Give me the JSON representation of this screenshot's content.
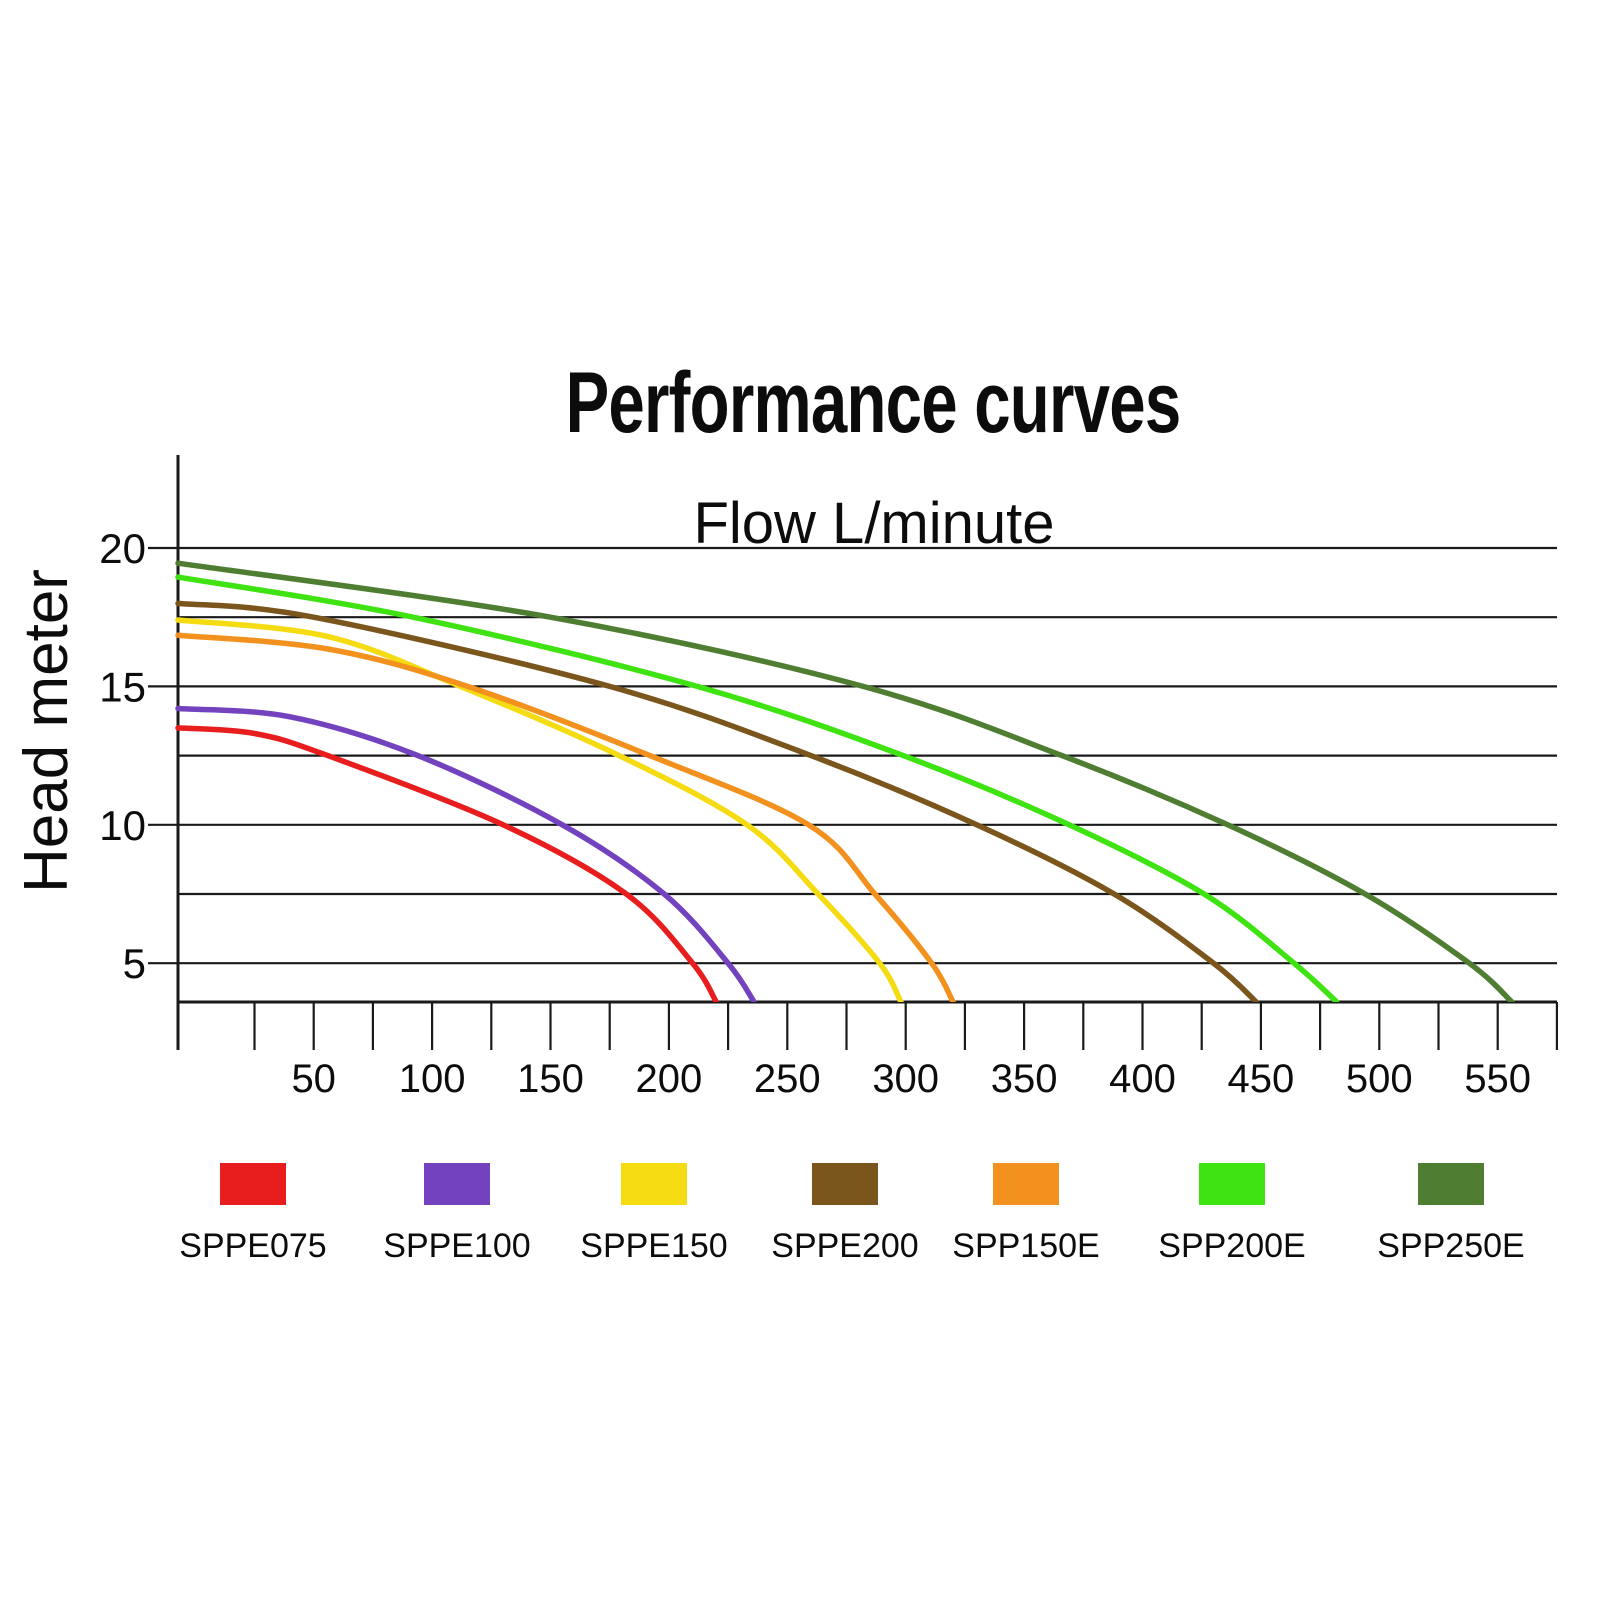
{
  "title": "Performance curves",
  "chart_data": {
    "type": "line",
    "title": "Performance curves",
    "xlabel": "Flow L/minute",
    "ylabel": "Head meter",
    "xlim": [
      0,
      575
    ],
    "ylim": [
      3.6,
      23
    ],
    "grid": true,
    "legend_position": "bottom",
    "x_tick_interval": 25,
    "x_tick_labels": [
      "50",
      "100",
      "150",
      "200",
      "250",
      "300",
      "350",
      "400",
      "450",
      "500",
      "550"
    ],
    "y_gridlines": [
      20,
      17.5,
      15,
      12.5,
      10,
      7.5,
      5
    ],
    "y_tick_labels": [
      "20",
      "15",
      "10",
      "5"
    ],
    "axis_color": "#1a1a1a",
    "series": [
      {
        "name": "SPPE075",
        "color": "#E81E1E",
        "points": [
          [
            0,
            13.5
          ],
          [
            25,
            13.3
          ],
          [
            56,
            12.5
          ],
          [
            130,
            10
          ],
          [
            182,
            7.5
          ],
          [
            210,
            5
          ],
          [
            220,
            3.6
          ]
        ]
      },
      {
        "name": "SPPE100",
        "color": "#7342BE",
        "points": [
          [
            0,
            14.2
          ],
          [
            40,
            13.9
          ],
          [
            94,
            12.5
          ],
          [
            155,
            10
          ],
          [
            198,
            7.5
          ],
          [
            225,
            5
          ],
          [
            236,
            3.6
          ]
        ]
      },
      {
        "name": "SPPE150",
        "color": "#F5DC12",
        "points": [
          [
            0,
            17.4
          ],
          [
            56,
            16.8
          ],
          [
            112,
            15
          ],
          [
            179,
            12.5
          ],
          [
            233,
            10
          ],
          [
            263,
            7.5
          ],
          [
            289,
            5
          ],
          [
            298,
            3.6
          ]
        ]
      },
      {
        "name": "SPPE200",
        "color": "#7A551C",
        "points": [
          [
            0,
            18.0
          ],
          [
            50,
            17.5
          ],
          [
            175,
            15
          ],
          [
            260,
            12.5
          ],
          [
            330,
            10
          ],
          [
            388,
            7.5
          ],
          [
            430,
            5
          ],
          [
            448,
            3.6
          ]
        ]
      },
      {
        "name": "SPP150E",
        "color": "#F2911D",
        "points": [
          [
            0,
            16.85
          ],
          [
            56,
            16.35
          ],
          [
            115,
            15
          ],
          [
            192,
            12.5
          ],
          [
            259,
            10
          ],
          [
            287,
            7.5
          ],
          [
            311,
            5
          ],
          [
            320,
            3.6
          ]
        ]
      },
      {
        "name": "SPP200E",
        "color": "#3FE311",
        "points": [
          [
            0,
            18.95
          ],
          [
            92,
            17.5
          ],
          [
            212,
            15
          ],
          [
            299,
            12.5
          ],
          [
            369,
            10
          ],
          [
            426,
            7.5
          ],
          [
            464,
            5
          ],
          [
            482,
            3.6
          ]
        ]
      },
      {
        "name": "SPP250E",
        "color": "#4F7E33",
        "points": [
          [
            0,
            19.45
          ],
          [
            150,
            17.5
          ],
          [
            282,
            15
          ],
          [
            366,
            12.5
          ],
          [
            436,
            10
          ],
          [
            494,
            7.5
          ],
          [
            538,
            5
          ],
          [
            556,
            3.6
          ]
        ]
      }
    ]
  },
  "legend": {
    "items": [
      {
        "label": "SPPE075",
        "color": "#E81E1E"
      },
      {
        "label": "SPPE100",
        "color": "#7342BE"
      },
      {
        "label": "SPPE150",
        "color": "#F5DC12"
      },
      {
        "label": "SPPE200",
        "color": "#7A551C"
      },
      {
        "label": "SPP150E",
        "color": "#F2911D"
      },
      {
        "label": "SPP200E",
        "color": "#3FE311"
      },
      {
        "label": "SPP250E",
        "color": "#4F7E33"
      }
    ]
  }
}
